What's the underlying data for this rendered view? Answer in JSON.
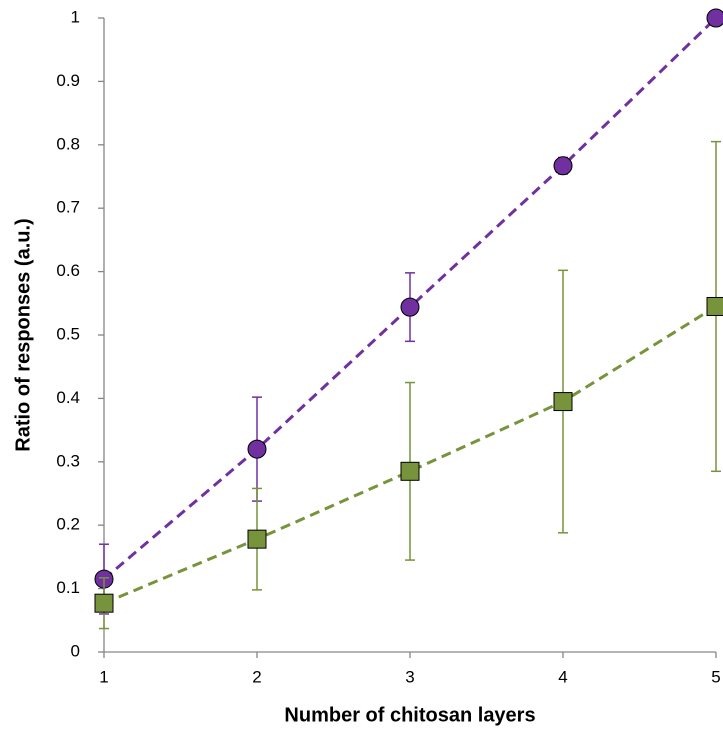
{
  "chart_data": {
    "type": "line",
    "x_label": "Number of chitosan layers",
    "y_label": "Ratio of responses (a.u.)",
    "x": [
      1,
      2,
      3,
      4,
      5
    ],
    "series": [
      {
        "color": "#7030a0",
        "marker": "circle",
        "values": [
          0.115,
          0.32,
          0.544,
          0.767,
          1.0
        ],
        "errors": [
          0.055,
          0.082,
          0.054,
          0.013,
          0
        ]
      },
      {
        "color": "#77933c",
        "marker": "square",
        "values": [
          0.077,
          0.178,
          0.285,
          0.395,
          0.545
        ],
        "errors": [
          0.04,
          0.08,
          0.14,
          0.207,
          0.26
        ]
      }
    ],
    "xlim": [
      1,
      5
    ],
    "xticks": [
      1,
      2,
      3,
      4,
      5
    ],
    "ylim": [
      0,
      1
    ],
    "yticks": [
      0,
      0.1,
      0.2,
      0.3,
      0.4,
      0.5,
      0.6,
      0.7,
      0.8,
      0.9,
      1
    ],
    "grid": false
  }
}
